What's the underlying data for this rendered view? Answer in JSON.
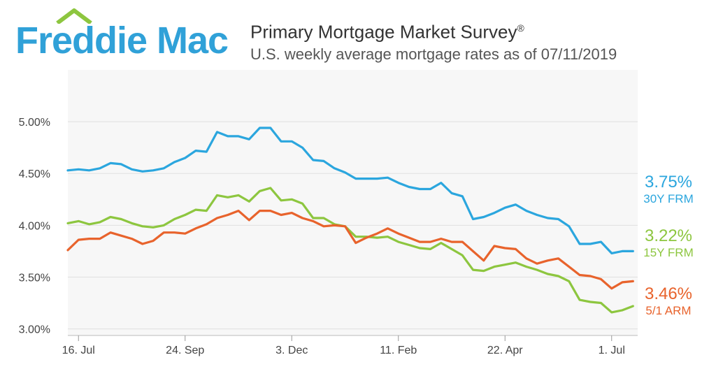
{
  "header": {
    "logo_word1": "Freddie",
    "logo_word2": "Mac",
    "title": "Primary Mortgage Market Survey",
    "title_mark": "®",
    "subtitle": "U.S. weekly average mortgage rates as of 07/11/2019"
  },
  "colors": {
    "brand_blue": "#30a1d8",
    "brand_green": "#8dc63f",
    "frm30": "#2ba6de",
    "frm15": "#8dc63f",
    "arm51": "#e8632c",
    "plot_bg": "#f7f7f7",
    "grid": "#e0e0e0"
  },
  "chart_data": {
    "type": "line",
    "title": "Primary Mortgage Market Survey",
    "subtitle": "U.S. weekly average mortgage rates as of 07/11/2019",
    "x_start": "2018-07-12",
    "x_end": "2019-07-11",
    "x_tick_labels": [
      "16. Jul",
      "24. Sep",
      "3. Dec",
      "11. Feb",
      "22. Apr",
      "1. Jul"
    ],
    "y_tick_labels": [
      "3.00%",
      "3.50%",
      "4.00%",
      "4.50%",
      "5.00%"
    ],
    "y_ticks": [
      3.0,
      3.5,
      4.0,
      4.5,
      5.0
    ],
    "ylim": [
      2.95,
      5.5
    ],
    "grid": true,
    "series": [
      {
        "name": "30Y FRM",
        "end_label": "3.75%",
        "values": [
          4.53,
          4.54,
          4.53,
          4.55,
          4.6,
          4.59,
          4.54,
          4.52,
          4.53,
          4.55,
          4.61,
          4.65,
          4.72,
          4.71,
          4.9,
          4.86,
          4.86,
          4.83,
          4.94,
          4.94,
          4.81,
          4.81,
          4.75,
          4.63,
          4.62,
          4.55,
          4.51,
          4.45,
          4.45,
          4.45,
          4.46,
          4.41,
          4.37,
          4.35,
          4.35,
          4.41,
          4.31,
          4.28,
          4.06,
          4.08,
          4.12,
          4.17,
          4.2,
          4.14,
          4.1,
          4.07,
          4.06,
          3.99,
          3.82,
          3.82,
          3.84,
          3.73,
          3.75,
          3.75
        ]
      },
      {
        "name": "15Y FRM",
        "end_label": "3.22%",
        "values": [
          4.02,
          4.04,
          4.01,
          4.03,
          4.08,
          4.06,
          4.02,
          3.99,
          3.98,
          4.0,
          4.06,
          4.1,
          4.15,
          4.14,
          4.29,
          4.27,
          4.29,
          4.23,
          4.33,
          4.36,
          4.24,
          4.25,
          4.21,
          4.07,
          4.07,
          4.01,
          3.99,
          3.89,
          3.89,
          3.88,
          3.89,
          3.84,
          3.81,
          3.78,
          3.77,
          3.83,
          3.77,
          3.71,
          3.57,
          3.56,
          3.6,
          3.62,
          3.64,
          3.6,
          3.57,
          3.53,
          3.51,
          3.46,
          3.28,
          3.26,
          3.25,
          3.16,
          3.18,
          3.22
        ]
      },
      {
        "name": "5/1 ARM",
        "end_label": "3.46%",
        "values": [
          3.76,
          3.86,
          3.87,
          3.87,
          3.93,
          3.9,
          3.87,
          3.82,
          3.85,
          3.93,
          3.93,
          3.92,
          3.97,
          4.01,
          4.07,
          4.1,
          4.14,
          4.05,
          4.14,
          4.14,
          4.1,
          4.12,
          4.07,
          4.04,
          3.99,
          4.0,
          3.99,
          3.83,
          3.88,
          3.92,
          3.97,
          3.92,
          3.88,
          3.84,
          3.84,
          3.87,
          3.84,
          3.84,
          3.75,
          3.66,
          3.8,
          3.78,
          3.77,
          3.68,
          3.63,
          3.66,
          3.68,
          3.6,
          3.52,
          3.51,
          3.48,
          3.39,
          3.45,
          3.46
        ]
      }
    ]
  }
}
